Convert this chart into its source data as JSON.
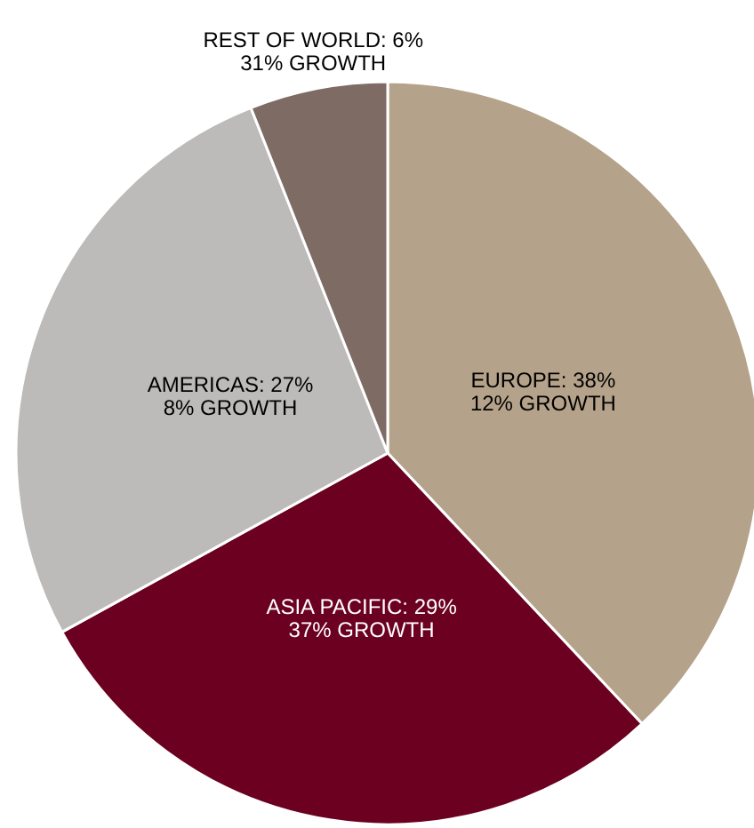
{
  "chart_data": {
    "type": "pie",
    "categories": [
      "EUROPE",
      "ASIA PACIFIC",
      "AMERICAS",
      "REST OF WORLD"
    ],
    "values": [
      38,
      29,
      27,
      6
    ],
    "value_labels": [
      "38%",
      "29%",
      "27%",
      "6%"
    ],
    "colors": [
      "#b5a28a",
      "#6b0020",
      "#bcbbba",
      "#7d6b64"
    ],
    "annotations": [
      "12% GROWTH",
      "37% GROWTH",
      "8% GROWTH",
      "31% GROWTH"
    ]
  }
}
